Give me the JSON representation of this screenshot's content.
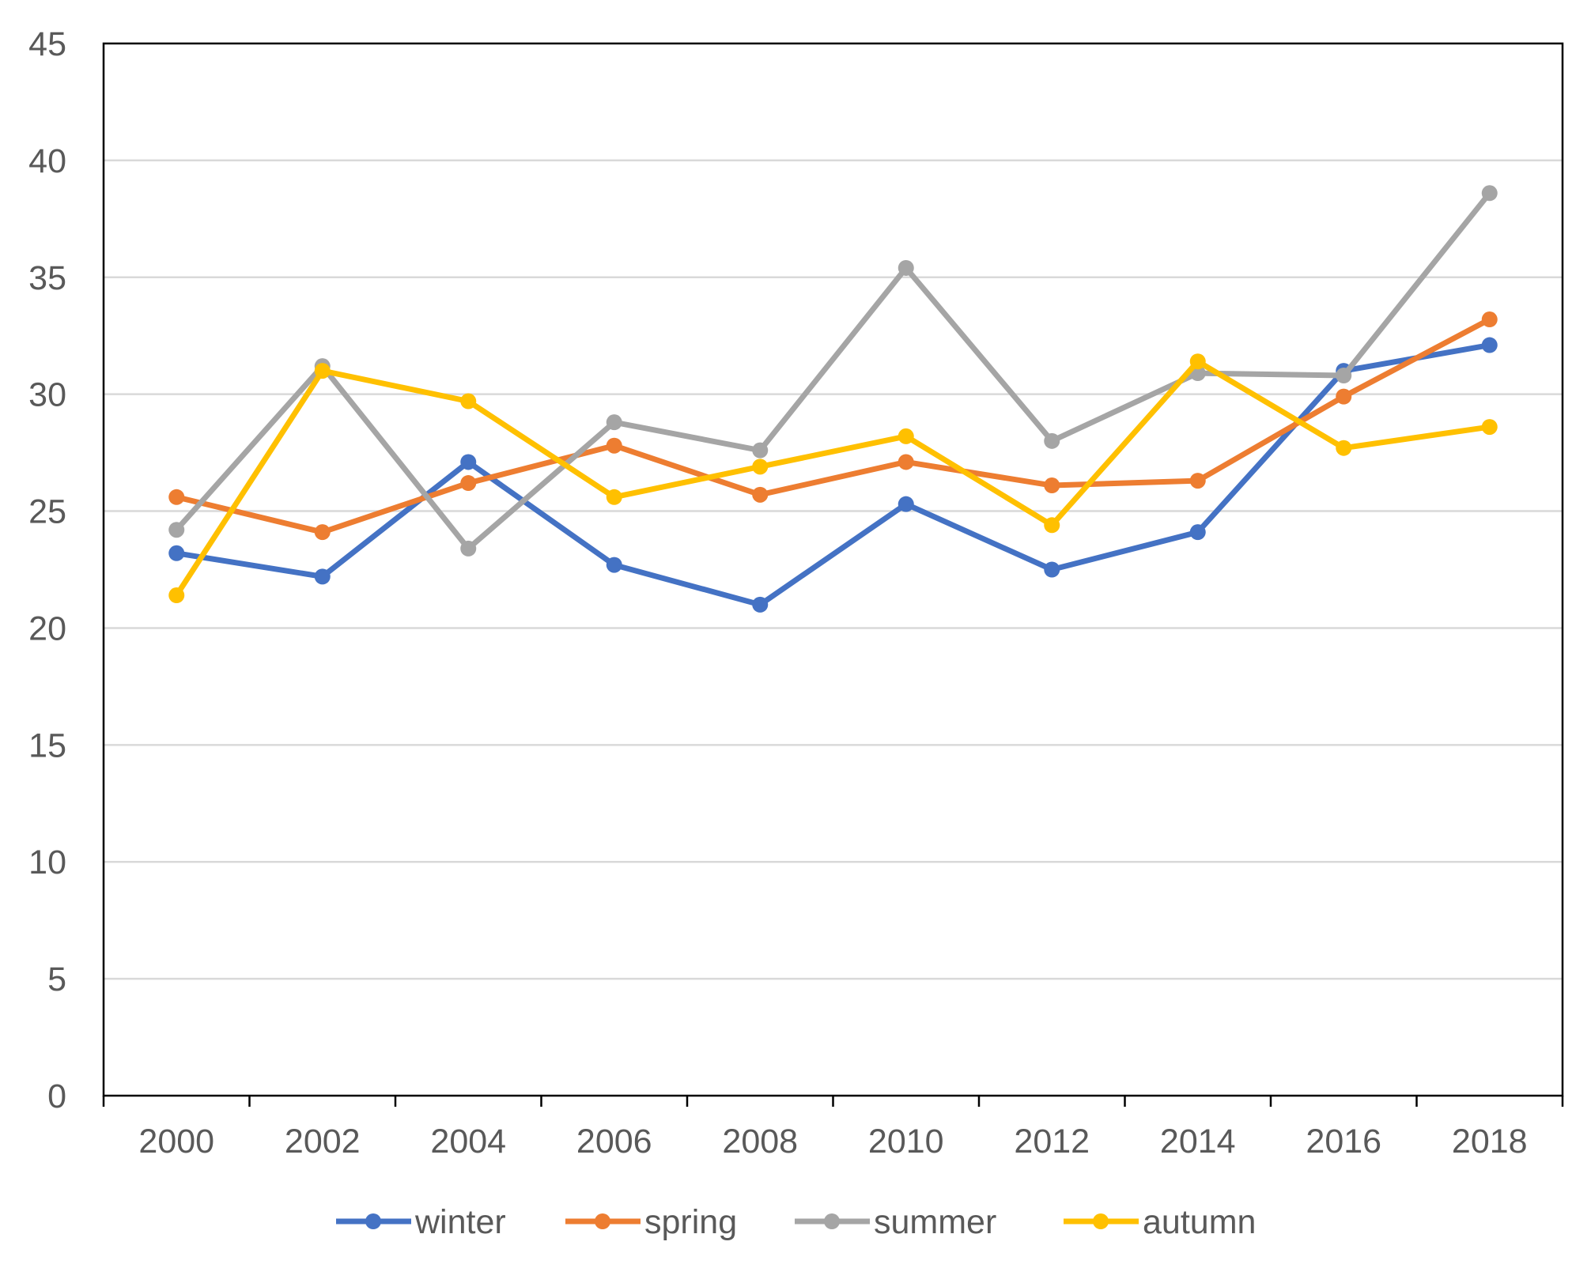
{
  "chart_data": {
    "type": "line",
    "title": "",
    "xlabel": "",
    "ylabel": "",
    "categories": [
      "2000",
      "2002",
      "2004",
      "2006",
      "2008",
      "2010",
      "2012",
      "2014",
      "2016",
      "2018"
    ],
    "ylim": [
      0,
      45
    ],
    "yticks": [
      "0",
      "5",
      "10",
      "15",
      "20",
      "25",
      "30",
      "35",
      "40",
      "45"
    ],
    "grid": true,
    "legend_position": "bottom",
    "series": [
      {
        "name": "winter",
        "color": "#4472C4",
        "values": [
          23.2,
          22.2,
          27.1,
          22.7,
          21.0,
          25.3,
          22.5,
          24.1,
          31.0,
          32.1
        ]
      },
      {
        "name": "spring",
        "color": "#ED7D31",
        "values": [
          25.6,
          24.1,
          26.2,
          27.8,
          25.7,
          27.1,
          26.1,
          26.3,
          29.9,
          33.2
        ]
      },
      {
        "name": "summer",
        "color": "#A5A5A5",
        "values": [
          24.2,
          31.2,
          23.4,
          28.8,
          27.6,
          35.4,
          28.0,
          30.9,
          30.8,
          38.6
        ]
      },
      {
        "name": "autumn",
        "color": "#FFC000",
        "values": [
          21.4,
          31.0,
          29.7,
          25.6,
          26.9,
          28.2,
          24.4,
          31.4,
          27.7,
          28.6
        ]
      }
    ]
  }
}
